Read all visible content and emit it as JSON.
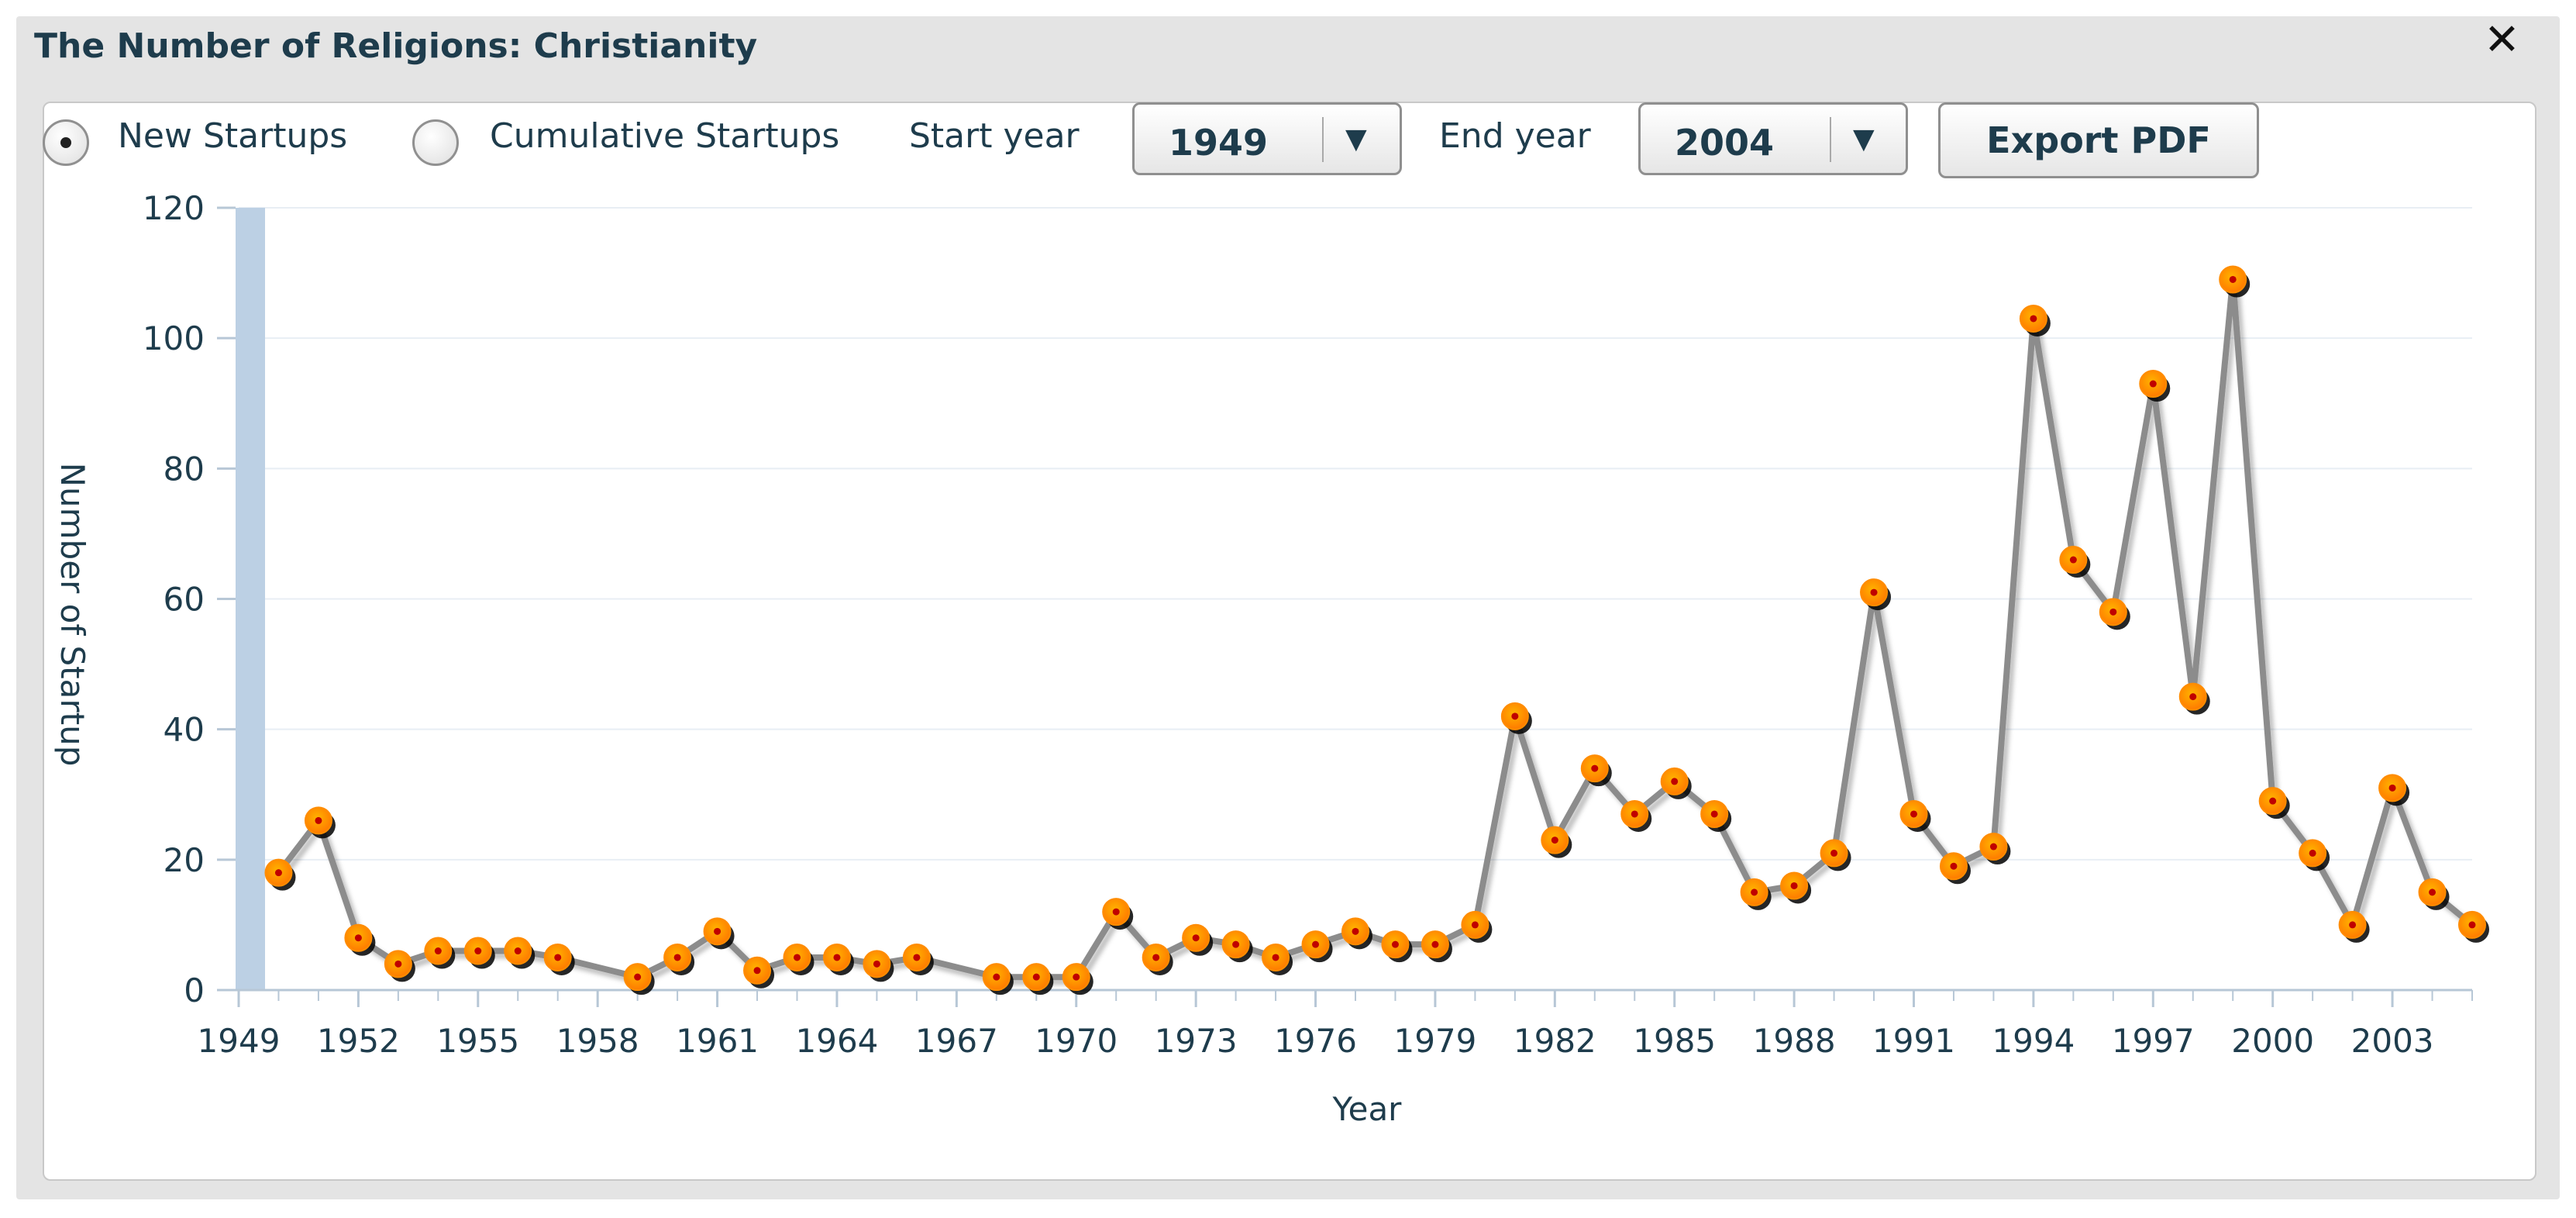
{
  "window": {
    "title": "The Number of Religions: Christianity",
    "close_icon": "close-icon"
  },
  "controls": {
    "radio_new_label": "New Startups",
    "radio_cumulative_label": "Cumulative Startups",
    "selected_mode": "New Startups",
    "start_year_label": "Start year",
    "start_year_value": "1949",
    "end_year_label": "End year",
    "end_year_value": "2004",
    "export_label": "Export PDF"
  },
  "colors": {
    "marker": "#ff8c00",
    "line": "#8c8c8c",
    "axis_band": "#bcd0e4",
    "text": "#1e3c4c"
  },
  "chart_data": {
    "type": "line",
    "title": "",
    "xlabel": "Year",
    "ylabel": "Number of Startup",
    "xlim": [
      1949,
      2005
    ],
    "ylim": [
      0,
      120
    ],
    "x_ticks": [
      "1949",
      "1952",
      "1955",
      "1958",
      "1961",
      "1964",
      "1967",
      "1970",
      "1973",
      "1976",
      "1979",
      "1982",
      "1985",
      "1988",
      "1991",
      "1994",
      "1997",
      "2000",
      "2003"
    ],
    "y_ticks": [
      "0",
      "20",
      "40",
      "60",
      "80",
      "100",
      "120"
    ],
    "grid": "horizontal",
    "series": [
      {
        "x": [
          1950,
          1951,
          1952,
          1953,
          1954,
          1955,
          1956,
          1957,
          1959,
          1960,
          1961,
          1962,
          1963,
          1964,
          1965,
          1966,
          1968,
          1969,
          1970,
          1971,
          1972,
          1973,
          1974,
          1975,
          1976,
          1977,
          1978,
          1979,
          1980,
          1981,
          1982,
          1983,
          1984,
          1985,
          1986,
          1987,
          1988,
          1989,
          1990,
          1991,
          1992,
          1993,
          1994,
          1995,
          1996,
          1997,
          1998,
          1999,
          2000,
          2001,
          2002,
          2003,
          2004,
          2005
        ],
        "values": [
          18,
          26,
          8,
          4,
          6,
          6,
          6,
          5,
          2,
          5,
          9,
          3,
          5,
          5,
          4,
          5,
          2,
          2,
          2,
          12,
          5,
          8,
          7,
          5,
          7,
          9,
          7,
          7,
          10,
          42,
          23,
          34,
          27,
          32,
          27,
          15,
          16,
          21,
          61,
          27,
          19,
          22,
          103,
          66,
          58,
          93,
          45,
          109,
          29,
          21,
          10,
          31,
          15,
          10
        ]
      }
    ]
  }
}
